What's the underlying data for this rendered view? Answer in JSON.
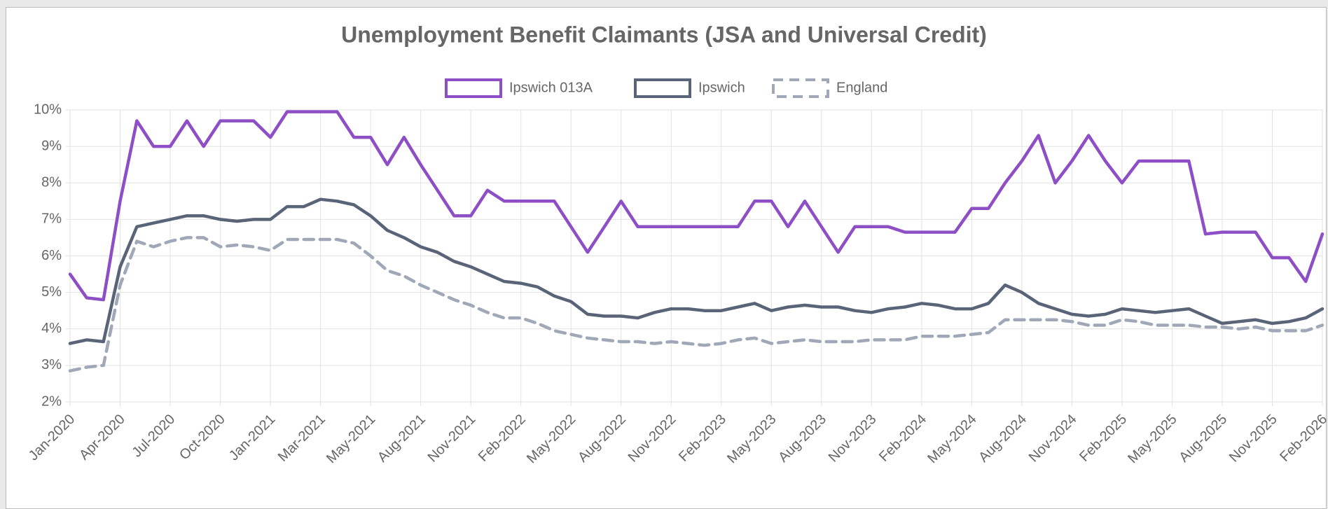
{
  "chart_data": {
    "type": "line",
    "title": "Unemployment Benefit Claimants (JSA and Universal Credit)",
    "categories": [
      "Jan-2020",
      null,
      null,
      "Apr-2020",
      null,
      null,
      "Jul-2020",
      null,
      null,
      "Oct-2020",
      null,
      null,
      "Jan-2021",
      null,
      null,
      "Mar-2021",
      null,
      null,
      "May-2021",
      null,
      null,
      "Aug-2021",
      null,
      null,
      "Nov-2021",
      null,
      null,
      "Feb-2022",
      null,
      null,
      "May-2022",
      null,
      null,
      "Aug-2022",
      null,
      null,
      "Nov-2022",
      null,
      null,
      "Feb-2023",
      null,
      null,
      "May-2023",
      null,
      null,
      "Aug-2023",
      null,
      null,
      "Nov-2023",
      null,
      null,
      "Feb-2024",
      null,
      null,
      "May-2024",
      null,
      null,
      "Aug-2024",
      null,
      null,
      "Nov-2024",
      null,
      null,
      "Feb-2025",
      null,
      null,
      "May-2025",
      null,
      null,
      "Aug-2025",
      null,
      null,
      "Nov-2025",
      null,
      null,
      "Feb-2026"
    ],
    "series": [
      {
        "name": "Ipswich 013A",
        "color": "#8e4fc6",
        "dashed": false,
        "values": [
          5.5,
          4.85,
          4.8,
          7.5,
          9.7,
          9.0,
          9.0,
          9.7,
          9.0,
          9.7,
          9.7,
          9.7,
          9.25,
          9.95,
          9.95,
          9.95,
          9.95,
          9.25,
          9.25,
          8.5,
          9.25,
          8.5,
          7.8,
          7.1,
          7.1,
          7.8,
          7.5,
          7.5,
          7.5,
          7.5,
          6.8,
          6.1,
          6.8,
          7.5,
          6.8,
          6.8,
          6.8,
          6.8,
          6.8,
          6.8,
          6.8,
          7.5,
          7.5,
          6.8,
          7.5,
          6.8,
          6.1,
          6.8,
          6.8,
          6.8,
          6.65,
          6.65,
          6.65,
          6.65,
          7.3,
          7.3,
          8.0,
          8.6,
          9.3,
          8.0,
          8.6,
          9.3,
          8.6,
          8.0,
          8.6,
          8.6,
          8.6,
          8.6,
          6.6,
          6.65,
          6.65,
          6.65,
          5.95,
          5.95,
          5.3,
          6.6
        ]
      },
      {
        "name": "Ipswich",
        "color": "#5a6478",
        "dashed": false,
        "values": [
          3.6,
          3.7,
          3.65,
          5.7,
          6.8,
          6.9,
          7.0,
          7.1,
          7.1,
          7.0,
          6.95,
          7.0,
          7.0,
          7.35,
          7.35,
          7.55,
          7.5,
          7.4,
          7.1,
          6.7,
          6.5,
          6.25,
          6.1,
          5.85,
          5.7,
          5.5,
          5.3,
          5.25,
          5.15,
          4.9,
          4.75,
          4.4,
          4.35,
          4.35,
          4.3,
          4.45,
          4.55,
          4.55,
          4.5,
          4.5,
          4.6,
          4.7,
          4.5,
          4.6,
          4.65,
          4.6,
          4.6,
          4.5,
          4.45,
          4.55,
          4.6,
          4.7,
          4.65,
          4.55,
          4.55,
          4.7,
          5.2,
          5.0,
          4.7,
          4.55,
          4.4,
          4.35,
          4.4,
          4.55,
          4.5,
          4.45,
          4.5,
          4.55,
          4.35,
          4.15,
          4.2,
          4.25,
          4.15,
          4.2,
          4.3,
          4.55
        ]
      },
      {
        "name": "England",
        "color": "#a0a8b8",
        "dashed": true,
        "values": [
          2.85,
          2.95,
          3.0,
          5.2,
          6.4,
          6.25,
          6.4,
          6.5,
          6.5,
          6.25,
          6.3,
          6.25,
          6.15,
          6.45,
          6.45,
          6.45,
          6.45,
          6.35,
          6.0,
          5.6,
          5.45,
          5.2,
          5.0,
          4.8,
          4.65,
          4.45,
          4.3,
          4.3,
          4.15,
          3.95,
          3.85,
          3.75,
          3.7,
          3.65,
          3.65,
          3.6,
          3.65,
          3.6,
          3.55,
          3.6,
          3.7,
          3.75,
          3.6,
          3.65,
          3.7,
          3.65,
          3.65,
          3.65,
          3.7,
          3.7,
          3.7,
          3.8,
          3.8,
          3.8,
          3.85,
          3.9,
          4.25,
          4.25,
          4.25,
          4.25,
          4.2,
          4.1,
          4.1,
          4.25,
          4.2,
          4.1,
          4.1,
          4.1,
          4.05,
          4.05,
          4.0,
          4.05,
          3.95,
          3.95,
          3.95,
          4.1
        ]
      }
    ],
    "ylim": [
      2,
      10
    ],
    "yticks": [
      {
        "value": 2,
        "label": "2%"
      },
      {
        "value": 3,
        "label": "3%"
      },
      {
        "value": 4,
        "label": "4%"
      },
      {
        "value": 5,
        "label": "5%"
      },
      {
        "value": 6,
        "label": "6%"
      },
      {
        "value": 7,
        "label": "7%"
      },
      {
        "value": 8,
        "label": "8%"
      },
      {
        "value": 9,
        "label": "9%"
      },
      {
        "value": 10,
        "label": "10%"
      }
    ],
    "grid": true,
    "legend": "top"
  }
}
